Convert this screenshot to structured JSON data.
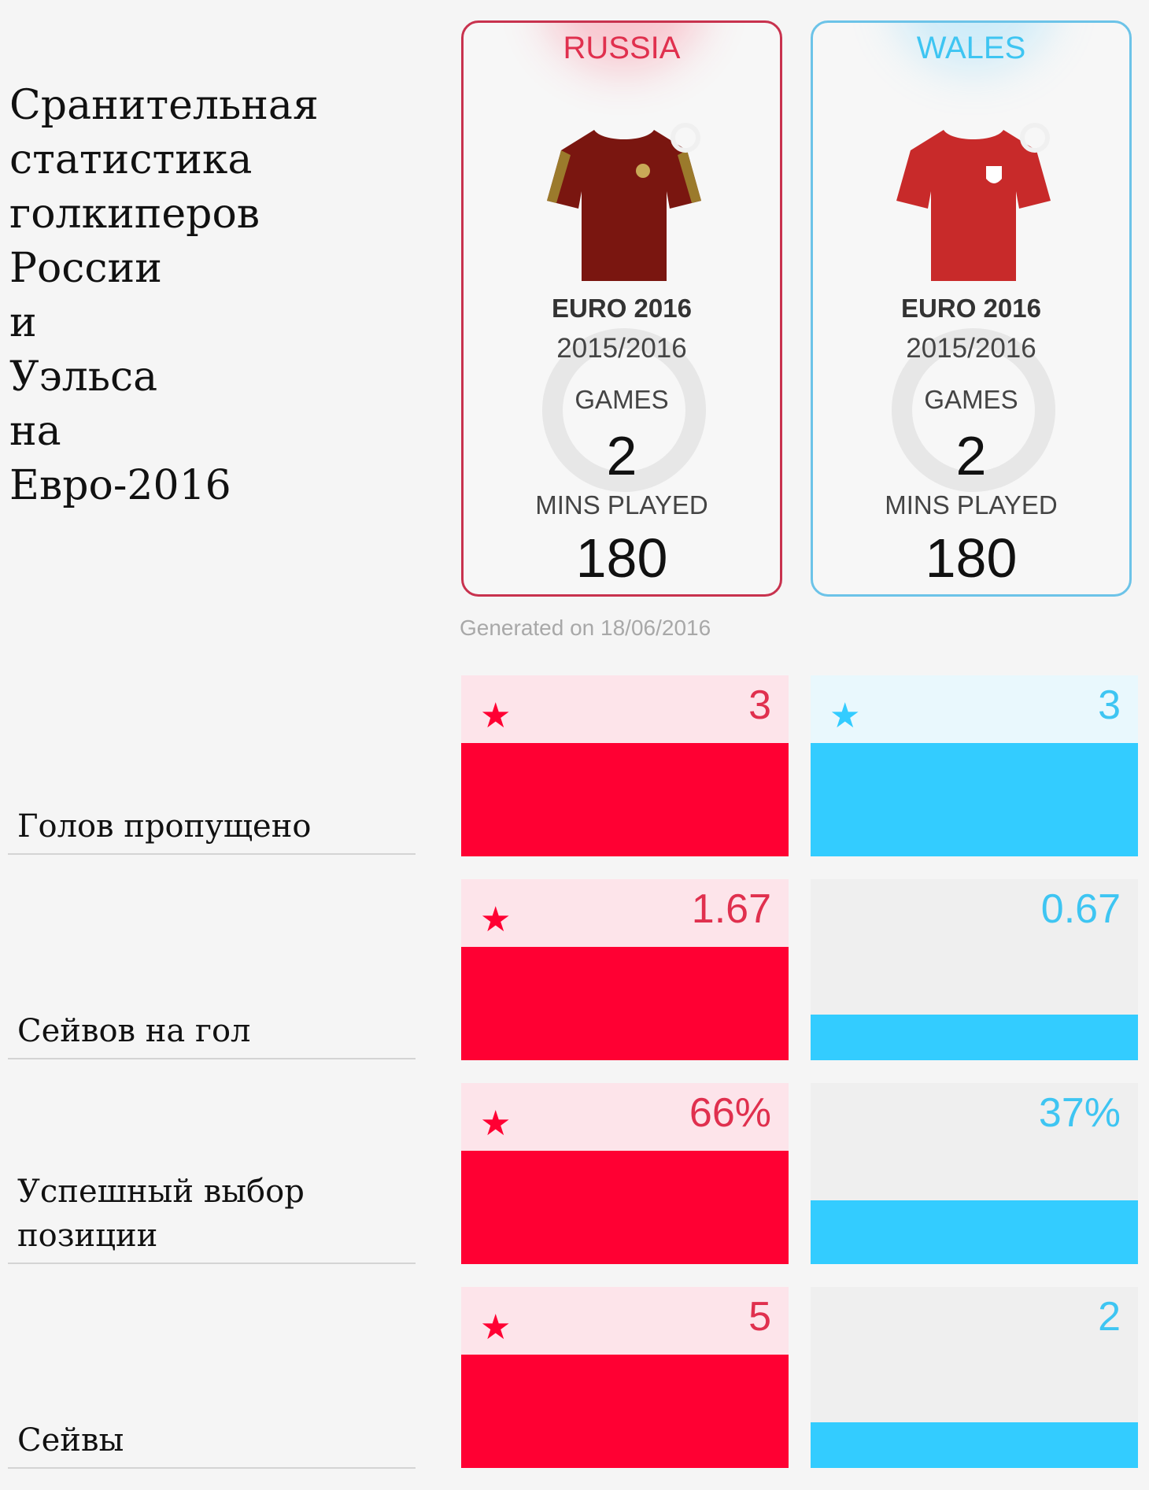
{
  "title": "Сранительная\nстатистика\nголкиперов\nРоссии\nи\nУэльса\nна\nЕвро-2016",
  "colors": {
    "russia": "#ff0033",
    "russia_text": "#e0304e",
    "russia_tint": "#fde4ea",
    "wales": "#33ccff",
    "wales_text": "#3ec5f2",
    "wales_tint": "#e9f8fd",
    "neutral": "#efefef"
  },
  "teams": [
    {
      "name": "RUSSIA",
      "shirt_icon": "russia-shirt-icon",
      "competition": "EURO 2016",
      "season": "2015/2016",
      "games_label": "GAMES",
      "games": "2",
      "mins_label": "MINS PLAYED",
      "mins": "180"
    },
    {
      "name": "WALES",
      "shirt_icon": "wales-shirt-icon",
      "competition": "EURO 2016",
      "season": "2015/2016",
      "games_label": "GAMES",
      "games": "2",
      "mins_label": "MINS PLAYED",
      "mins": "180"
    }
  ],
  "generated": "Generated on 18/06/2016",
  "chart_data": {
    "type": "bar",
    "categories": [
      "Голов пропущено",
      "Сейвов на гол",
      "Успешный выбор позиции",
      "Сейвы"
    ],
    "series": [
      {
        "name": "RUSSIA",
        "values": [
          3,
          1.67,
          66,
          5
        ],
        "labels": [
          "3",
          "1.67",
          "66%",
          "5"
        ],
        "star": [
          true,
          true,
          true,
          true
        ]
      },
      {
        "name": "WALES",
        "values": [
          3,
          0.67,
          37,
          2
        ],
        "labels": [
          "3",
          "0.67",
          "37%",
          "2"
        ],
        "star": [
          true,
          false,
          false,
          false
        ]
      }
    ]
  }
}
